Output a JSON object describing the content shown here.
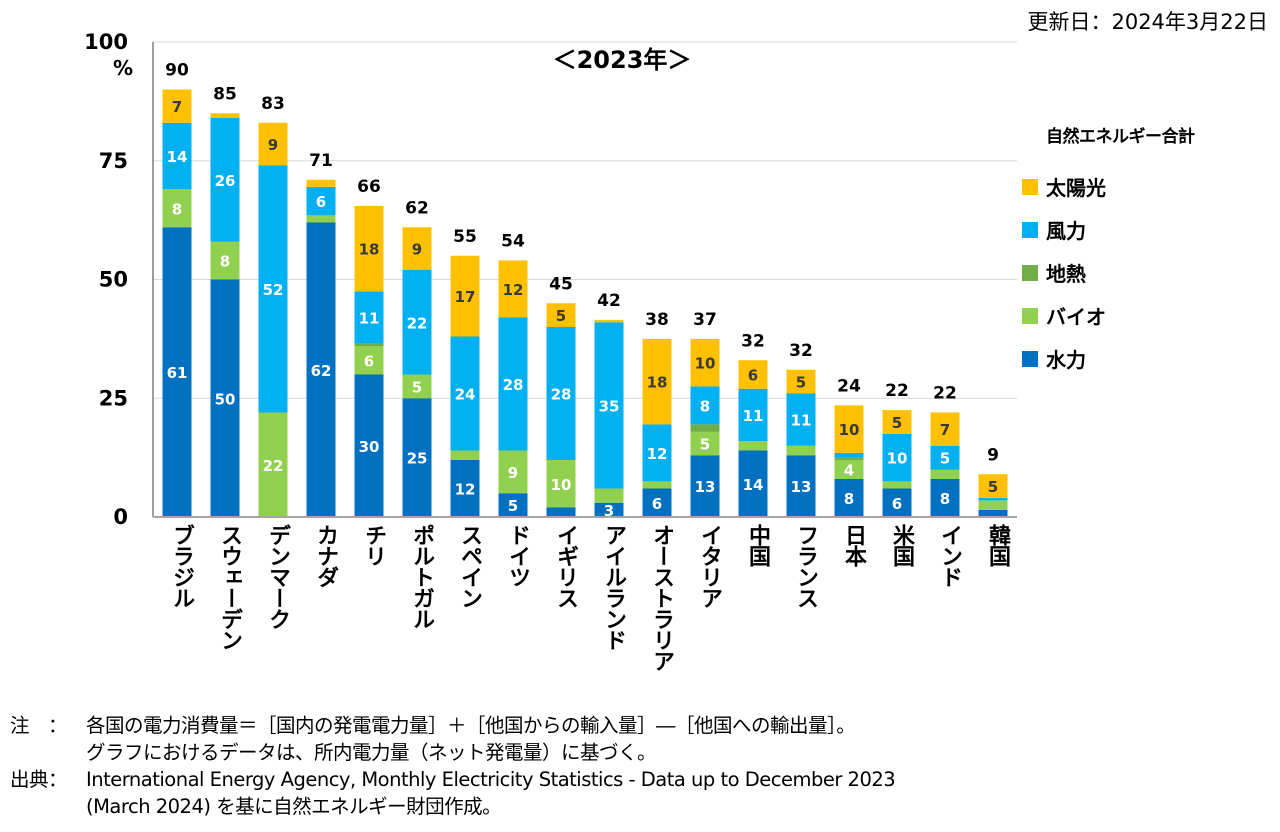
{
  "update_date": "更新日：2024年3月22日",
  "notes": [
    {
      "label": "注　：",
      "lines": [
        "各国の電力消費量＝［国内の発電電力量］＋［他国からの輸入量］―［他国への輸出量］。",
        "グラフにおけるデータは、所内電力量（ネット発電量）に基づく。"
      ]
    },
    {
      "label": "出典：",
      "lines": [
        "International Energy Agency, Monthly Electricity Statistics - Data up to December 2023",
        " (March 2024) を基に自然エネルギー財団作成。"
      ]
    }
  ],
  "chart_data": {
    "type": "bar",
    "stacked": true,
    "title": "＜2023年＞",
    "xlabel": "",
    "ylabel": "%",
    "ylim": [
      0,
      100
    ],
    "yticks": [
      0,
      25,
      50,
      75,
      100
    ],
    "ytick_labels": [
      "0",
      "25",
      "50",
      "75",
      "100"
    ],
    "grid": true,
    "legend_title": "自然エネルギー合計",
    "legend_position": "right",
    "categories": [
      "ブラジル",
      "スウェーデン",
      "デンマーク",
      "カナダ",
      "チリ",
      "ポルトガル",
      "スペイン",
      "ドイツ",
      "イギリス",
      "アイルランド",
      "オーストラリア",
      "イタリア",
      "中国",
      "フランス",
      "日本",
      "米国",
      "インド",
      "韓国"
    ],
    "totals": [
      90,
      85,
      83,
      71,
      66,
      62,
      55,
      54,
      45,
      42,
      38,
      37,
      32,
      32,
      24,
      22,
      22,
      9
    ],
    "series": [
      {
        "name": "水力",
        "color": "#0070C0",
        "text_color": "#ffffff",
        "values": [
          61,
          50,
          0,
          62,
          30,
          25,
          12,
          5,
          2,
          3,
          6,
          13,
          14,
          13,
          8,
          6,
          8,
          1.5
        ],
        "labels": [
          "61",
          "50",
          "",
          "62",
          "30",
          "25",
          "12",
          "5",
          "",
          "3",
          "6",
          "13",
          "14",
          "13",
          "8",
          "6",
          "8",
          ""
        ]
      },
      {
        "name": "バイオ",
        "color": "#92D050",
        "text_color": "#ffffff",
        "values": [
          8,
          8,
          22,
          1.5,
          6,
          5,
          2,
          9,
          10,
          3,
          1.5,
          5,
          2,
          2,
          4,
          1.5,
          2,
          2
        ],
        "labels": [
          "8",
          "8",
          "22",
          "",
          "6",
          "5",
          "",
          "9",
          "10",
          "",
          "",
          "5",
          "",
          "",
          "4",
          "",
          "",
          ""
        ]
      },
      {
        "name": "地熱",
        "color": "#70AD47",
        "text_color": "#ffffff",
        "values": [
          0,
          0,
          0,
          0,
          0.5,
          0,
          0,
          0,
          0,
          0,
          0,
          1.5,
          0,
          0,
          0.5,
          0,
          0,
          0
        ],
        "labels": [
          "",
          "",
          "",
          "",
          "",
          "",
          "",
          "",
          "",
          "",
          "",
          "",
          "",
          "",
          "",
          "",
          "",
          ""
        ]
      },
      {
        "name": "風力",
        "color": "#00B0F0",
        "text_color": "#ffffff",
        "values": [
          14,
          26,
          52,
          6,
          11,
          22,
          24,
          28,
          28,
          35,
          12,
          8,
          11,
          11,
          1,
          10,
          5,
          0.5
        ],
        "labels": [
          "14",
          "26",
          "52",
          "6",
          "11",
          "22",
          "24",
          "28",
          "28",
          "35",
          "12",
          "8",
          "11",
          "11",
          "",
          "10",
          "5",
          ""
        ]
      },
      {
        "name": "太陽光",
        "color": "#FFC000",
        "text_color": "#3a3a3a",
        "values": [
          7,
          1,
          9,
          1.5,
          18,
          9,
          17,
          12,
          5,
          0.5,
          18,
          10,
          6,
          5,
          10,
          5,
          7,
          5
        ],
        "labels": [
          "7",
          "",
          "9",
          "",
          "18",
          "9",
          "17",
          "12",
          "5",
          "",
          "18",
          "10",
          "6",
          "5",
          "10",
          "5",
          "7",
          "5"
        ]
      }
    ],
    "legend_order": [
      "太陽光",
      "風力",
      "地熱",
      "バイオ",
      "水力"
    ]
  }
}
